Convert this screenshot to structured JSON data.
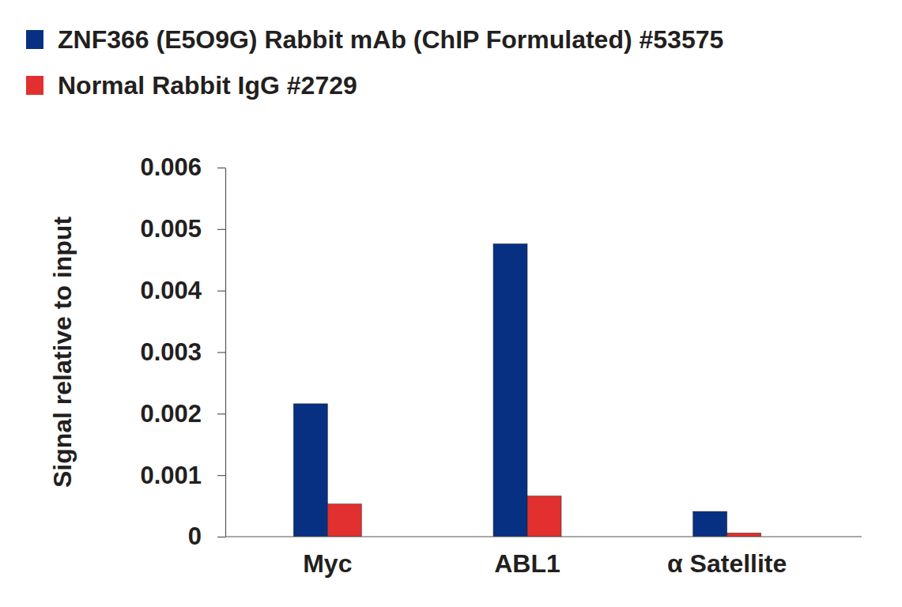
{
  "chart_data": {
    "type": "bar",
    "y_label": "Signal relative to input",
    "categories": [
      "Myc",
      "ABL1",
      "α Satellite"
    ],
    "series": [
      {
        "name": "ZNF366 (E5O9G) Rabbit mAb (ChIP Formulated) #53575",
        "color": "#073082",
        "values": [
          0.00216,
          0.00476,
          0.00041
        ]
      },
      {
        "name": "Normal Rabbit IgG #2729",
        "color": "#e1302f",
        "values": [
          0.00053,
          0.00066,
          6e-05
        ]
      }
    ],
    "ylim": [
      0,
      0.006
    ],
    "yticks": [
      0,
      0.001,
      0.002,
      0.003,
      0.004,
      0.005,
      0.006
    ],
    "grid": false,
    "legend": "top-left"
  }
}
